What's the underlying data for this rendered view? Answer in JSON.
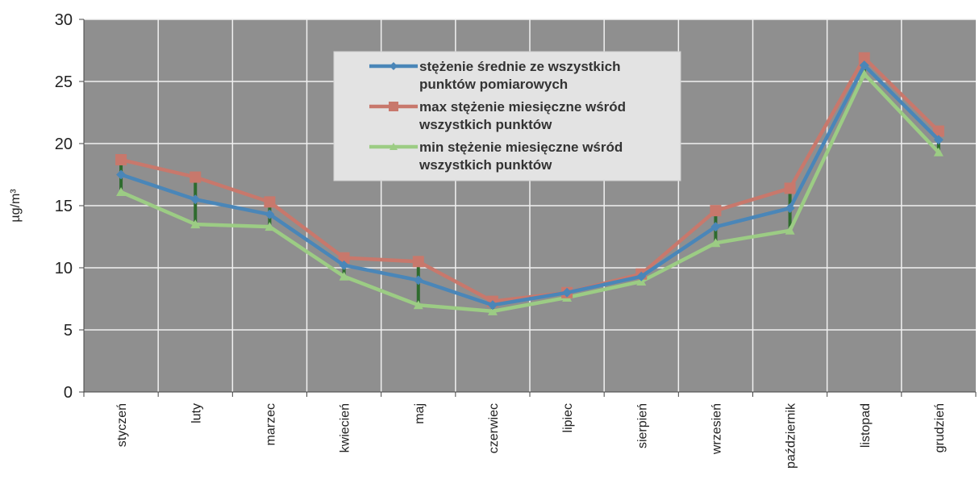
{
  "chart_data": {
    "type": "line",
    "title": "",
    "xlabel": "",
    "ylabel": "µg/m³",
    "ylim": [
      0,
      30
    ],
    "yticks": [
      0,
      5,
      10,
      15,
      20,
      25,
      30
    ],
    "grid": true,
    "legend_position": "top-center",
    "categories": [
      "styczeń",
      "luty",
      "marzec",
      "kwiecień",
      "maj",
      "czerwiec",
      "lipiec",
      "sierpień",
      "wrzesień",
      "październik",
      "listopad",
      "grudzień"
    ],
    "series": [
      {
        "name": "stężenie średnie ze wszystkich punktów pomiarowych",
        "legend_lines": [
          "stężenie średnie ze wszystkich",
          "punktów pomiarowych"
        ],
        "color": "#4a86b8",
        "marker": "diamond",
        "values": [
          17.5,
          15.5,
          14.3,
          10.2,
          9.0,
          7.0,
          8.0,
          9.3,
          13.3,
          14.8,
          26.3,
          20.3
        ]
      },
      {
        "name": "max stężenie miesięczne wśród wszystkich punktów",
        "legend_lines": [
          "max stężenie miesięczne wśród",
          "wszystkich punktów"
        ],
        "color": "#c8786c",
        "marker": "square",
        "values": [
          18.7,
          17.3,
          15.3,
          10.8,
          10.5,
          7.3,
          8.0,
          9.5,
          14.6,
          16.4,
          26.9,
          21.0
        ]
      },
      {
        "name": "min stężenie miesięczne wśród wszystkich punktów",
        "legend_lines": [
          "min stężenie miesięczne wśród",
          "wszystkich punktów"
        ],
        "color": "#9ccc84",
        "marker": "triangle",
        "values": [
          16.1,
          13.5,
          13.3,
          9.3,
          7.0,
          6.5,
          7.6,
          8.9,
          12.0,
          13.0,
          25.6,
          19.3
        ]
      }
    ],
    "colors": {
      "plot_background": "#8f8f8f",
      "grid": "#f0f0f0",
      "error_bar": "#2e6b2e",
      "legend_background": "#e3e3e3"
    }
  }
}
